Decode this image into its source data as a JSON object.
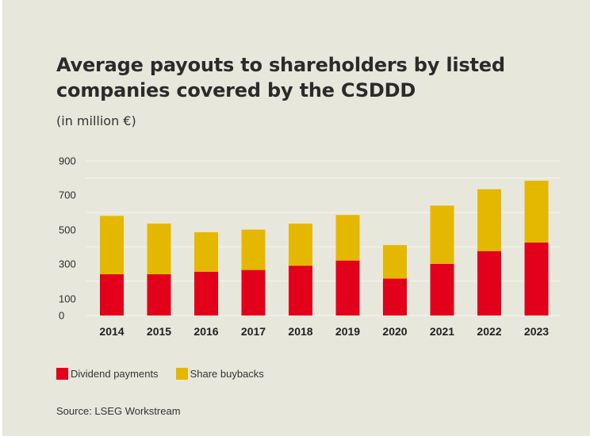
{
  "chart_data": {
    "type": "bar",
    "stacked": true,
    "title": "Average payouts to shareholders by listed companies covered by the CSDDD",
    "subtitle": "(in million €)",
    "categories": [
      "2014",
      "2015",
      "2016",
      "2017",
      "2018",
      "2019",
      "2020",
      "2021",
      "2022",
      "2023"
    ],
    "series": [
      {
        "name": "Dividend payments",
        "color": "#e2001a",
        "values": [
          240,
          240,
          255,
          265,
          290,
          320,
          215,
          300,
          375,
          425
        ]
      },
      {
        "name": "Share buybacks",
        "color": "#e5b800",
        "values": [
          340,
          295,
          230,
          235,
          245,
          265,
          195,
          340,
          360,
          360
        ]
      }
    ],
    "yticks": [
      0,
      100,
      300,
      500,
      700,
      900
    ],
    "ylim": [
      0,
      900
    ],
    "grid": true,
    "legend_position": "bottom-left",
    "source": "Source: LSEG Workstream"
  }
}
